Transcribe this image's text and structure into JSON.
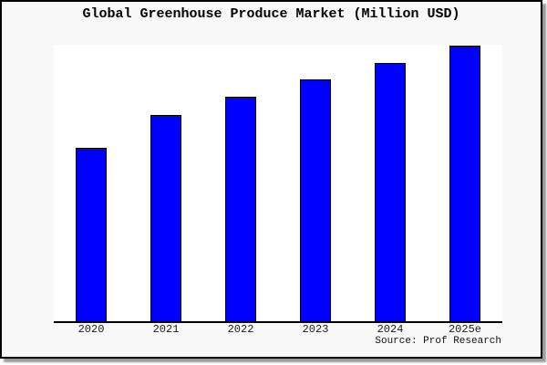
{
  "page": {
    "background_color": "#f8f8f8",
    "plot_background_color": "#ffffff",
    "border_color": "#000000",
    "shadow_color": "#9a9a9a"
  },
  "chart_data": {
    "type": "bar",
    "title": "Global Greenhouse Produce Market (Million USD)",
    "categories": [
      "2020",
      "2021",
      "2022",
      "2023",
      "2024",
      "2025e"
    ],
    "values": [
      63,
      75,
      81.5,
      87.7,
      93.7,
      100
    ],
    "values_unit": "relative height, % of tallest bar (no numeric y-axis shown)",
    "xlabel": "",
    "ylabel": "",
    "y_axis_labels_visible": false,
    "gridlines": false,
    "legend": false,
    "bar_fill_color": "#0000ff",
    "bar_border_color": "#000000",
    "axis_line_color": "#000000"
  },
  "footer": {
    "source_text": "Source: Prof Research"
  }
}
